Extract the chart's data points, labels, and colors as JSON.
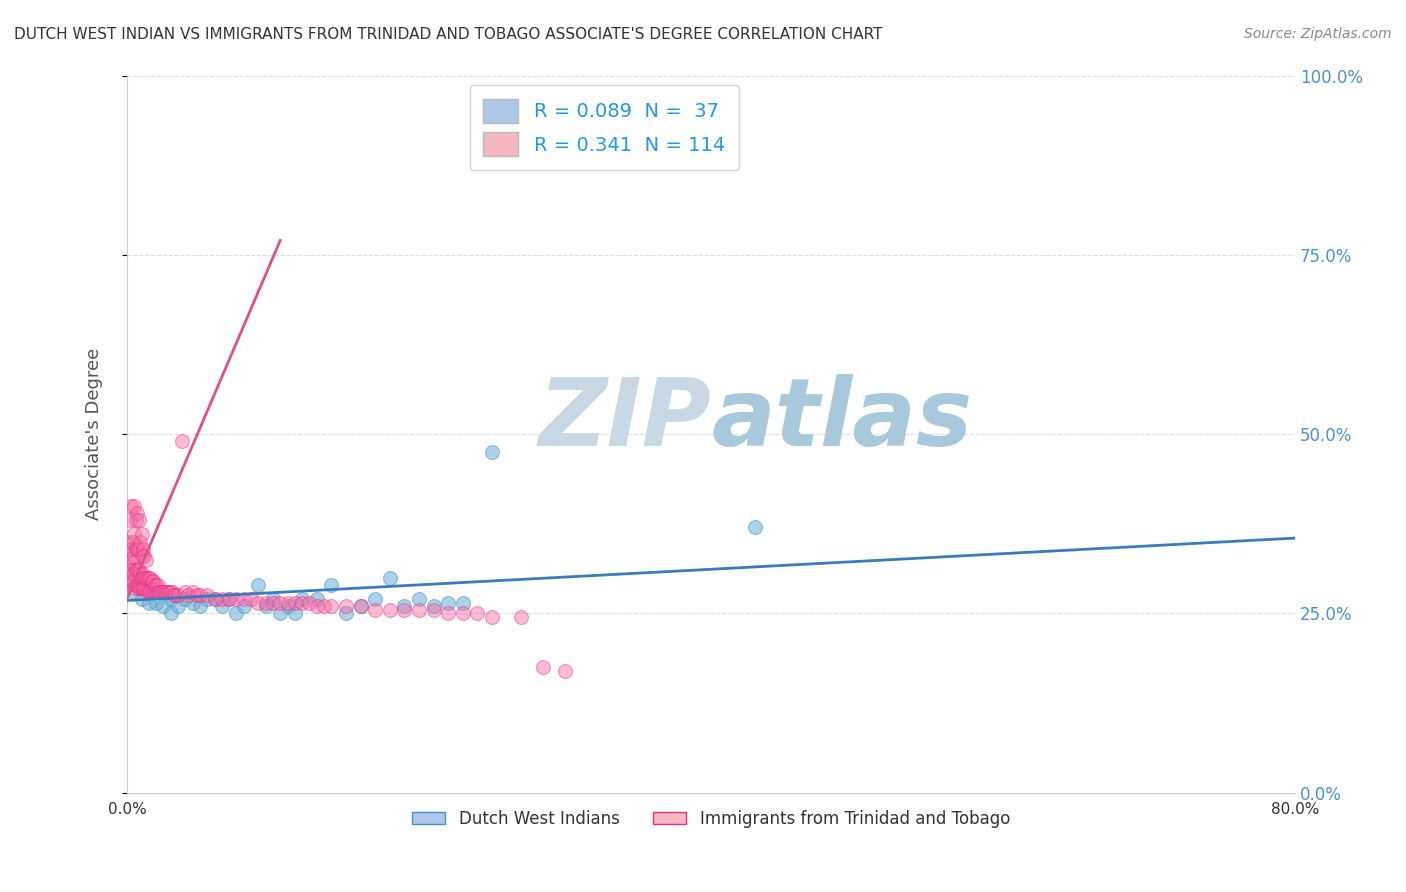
{
  "title": "DUTCH WEST INDIAN VS IMMIGRANTS FROM TRINIDAD AND TOBAGO ASSOCIATE'S DEGREE CORRELATION CHART",
  "source": "Source: ZipAtlas.com",
  "ylabel": "Associate's Degree",
  "xlim": [
    0.0,
    0.8
  ],
  "ylim": [
    0.0,
    1.0
  ],
  "ytick_labels": [
    "0.0%",
    "25.0%",
    "50.0%",
    "75.0%",
    "100.0%"
  ],
  "ytick_values": [
    0.0,
    0.25,
    0.5,
    0.75,
    1.0
  ],
  "xtick_values": [
    0.0,
    0.2,
    0.4,
    0.6,
    0.8
  ],
  "xtick_labels": [
    "0.0%",
    "",
    "",
    "",
    "80.0%"
  ],
  "legend_entries": [
    {
      "label": "R = 0.089  N =  37",
      "color": "#aec6e8"
    },
    {
      "label": "R = 0.341  N = 114",
      "color": "#f4b8c1"
    }
  ],
  "legend_labels_bottom": [
    "Dutch West Indians",
    "Immigrants from Trinidad and Tobago"
  ],
  "blue_scatter": {
    "color": "#6baed6",
    "edge_color": "#4292c6",
    "alpha": 0.55,
    "size": 100,
    "x": [
      0.005,
      0.01,
      0.015,
      0.02,
      0.025,
      0.03,
      0.03,
      0.035,
      0.04,
      0.045,
      0.05,
      0.055,
      0.06,
      0.065,
      0.07,
      0.075,
      0.08,
      0.09,
      0.095,
      0.1,
      0.105,
      0.11,
      0.115,
      0.12,
      0.13,
      0.14,
      0.15,
      0.16,
      0.17,
      0.18,
      0.19,
      0.2,
      0.21,
      0.22,
      0.23,
      0.25,
      0.43
    ],
    "y": [
      0.28,
      0.27,
      0.265,
      0.265,
      0.26,
      0.27,
      0.25,
      0.26,
      0.27,
      0.265,
      0.26,
      0.27,
      0.27,
      0.26,
      0.27,
      0.25,
      0.26,
      0.29,
      0.26,
      0.27,
      0.25,
      0.26,
      0.25,
      0.27,
      0.27,
      0.29,
      0.25,
      0.26,
      0.27,
      0.3,
      0.26,
      0.27,
      0.26,
      0.265,
      0.265,
      0.475,
      0.37
    ]
  },
  "pink_scatter": {
    "color": "#f768a1",
    "edge_color": "#e7298a",
    "alpha": 0.45,
    "size": 100,
    "x": [
      0.001,
      0.001,
      0.001,
      0.002,
      0.002,
      0.002,
      0.002,
      0.003,
      0.003,
      0.003,
      0.003,
      0.004,
      0.004,
      0.004,
      0.005,
      0.005,
      0.005,
      0.005,
      0.005,
      0.006,
      0.006,
      0.006,
      0.006,
      0.007,
      0.007,
      0.007,
      0.007,
      0.008,
      0.008,
      0.008,
      0.008,
      0.009,
      0.009,
      0.009,
      0.01,
      0.01,
      0.01,
      0.01,
      0.011,
      0.011,
      0.011,
      0.012,
      0.012,
      0.012,
      0.013,
      0.013,
      0.013,
      0.014,
      0.014,
      0.015,
      0.015,
      0.016,
      0.016,
      0.017,
      0.017,
      0.018,
      0.018,
      0.019,
      0.019,
      0.02,
      0.02,
      0.021,
      0.021,
      0.022,
      0.023,
      0.024,
      0.025,
      0.026,
      0.027,
      0.028,
      0.029,
      0.03,
      0.031,
      0.032,
      0.033,
      0.035,
      0.038,
      0.04,
      0.042,
      0.045,
      0.048,
      0.05,
      0.055,
      0.06,
      0.065,
      0.07,
      0.075,
      0.08,
      0.085,
      0.09,
      0.095,
      0.1,
      0.105,
      0.11,
      0.115,
      0.12,
      0.125,
      0.13,
      0.135,
      0.14,
      0.15,
      0.16,
      0.17,
      0.18,
      0.19,
      0.2,
      0.21,
      0.22,
      0.23,
      0.24,
      0.25,
      0.27,
      0.285,
      0.3
    ],
    "y": [
      0.29,
      0.32,
      0.35,
      0.295,
      0.31,
      0.34,
      0.38,
      0.295,
      0.31,
      0.34,
      0.4,
      0.295,
      0.32,
      0.35,
      0.285,
      0.305,
      0.33,
      0.36,
      0.4,
      0.29,
      0.31,
      0.34,
      0.38,
      0.29,
      0.31,
      0.34,
      0.39,
      0.285,
      0.31,
      0.34,
      0.38,
      0.285,
      0.305,
      0.35,
      0.285,
      0.3,
      0.33,
      0.36,
      0.285,
      0.305,
      0.34,
      0.285,
      0.3,
      0.33,
      0.285,
      0.3,
      0.325,
      0.28,
      0.3,
      0.28,
      0.3,
      0.28,
      0.3,
      0.28,
      0.295,
      0.28,
      0.295,
      0.28,
      0.29,
      0.28,
      0.29,
      0.28,
      0.29,
      0.28,
      0.28,
      0.28,
      0.28,
      0.28,
      0.28,
      0.28,
      0.28,
      0.28,
      0.28,
      0.275,
      0.275,
      0.275,
      0.49,
      0.28,
      0.275,
      0.28,
      0.275,
      0.275,
      0.275,
      0.27,
      0.27,
      0.27,
      0.27,
      0.27,
      0.27,
      0.265,
      0.265,
      0.265,
      0.265,
      0.265,
      0.265,
      0.265,
      0.265,
      0.26,
      0.26,
      0.26,
      0.26,
      0.26,
      0.255,
      0.255,
      0.255,
      0.255,
      0.255,
      0.25,
      0.25,
      0.25,
      0.245,
      0.245,
      0.175,
      0.17
    ]
  },
  "blue_line": {
    "x_start": 0.0,
    "x_end": 0.8,
    "y_start": 0.268,
    "y_end": 0.355,
    "color": "#3a7bbf",
    "linewidth": 2.0
  },
  "pink_line": {
    "x_start": 0.0,
    "x_end": 0.105,
    "y_start": 0.27,
    "y_end": 0.77,
    "color": "#e05080",
    "linewidth": 2.0
  },
  "background_color": "#ffffff",
  "plot_bg_color": "#ffffff",
  "grid_color": "#dddddd",
  "title_color": "#333333",
  "watermark_zip": "ZIP",
  "watermark_atlas": "atlas",
  "watermark_color_zip": "#c8d8e4",
  "watermark_color_atlas": "#a8c8dc",
  "watermark_fontsize": 68
}
